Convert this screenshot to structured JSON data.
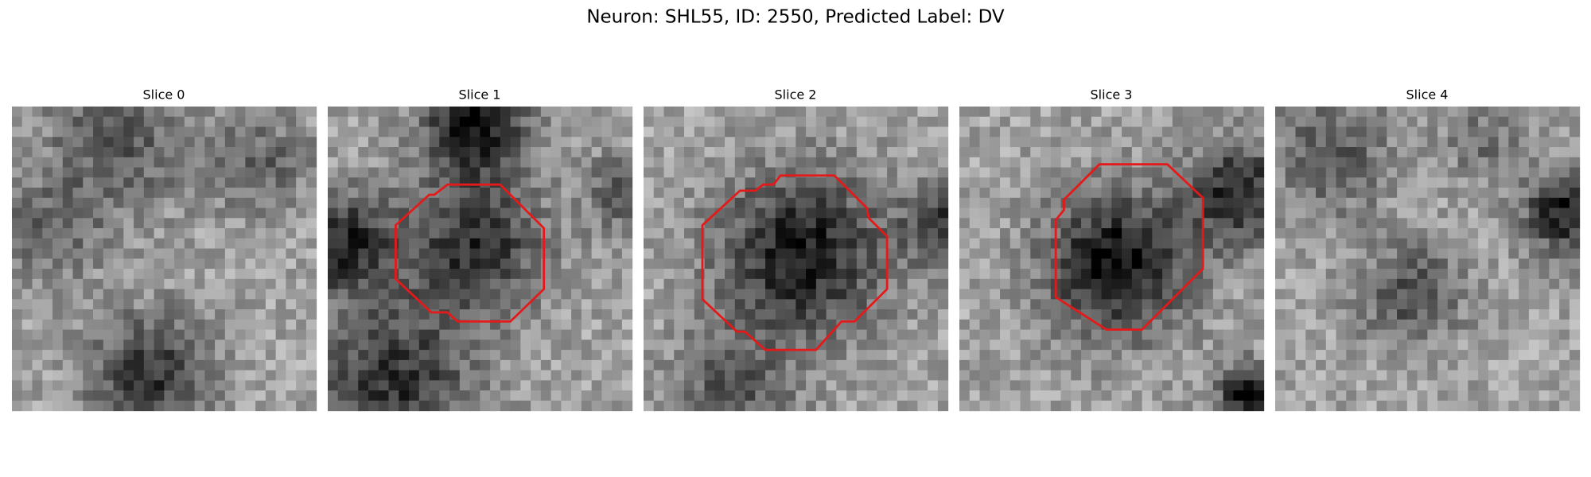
{
  "title": "Neuron: SHL55, ID: 2550, Predicted Label: DV",
  "panels": [
    {
      "title": "Slice 0"
    },
    {
      "title": "Slice 1"
    },
    {
      "title": "Slice 2"
    },
    {
      "title": "Slice 3"
    },
    {
      "title": "Slice 4"
    }
  ]
}
